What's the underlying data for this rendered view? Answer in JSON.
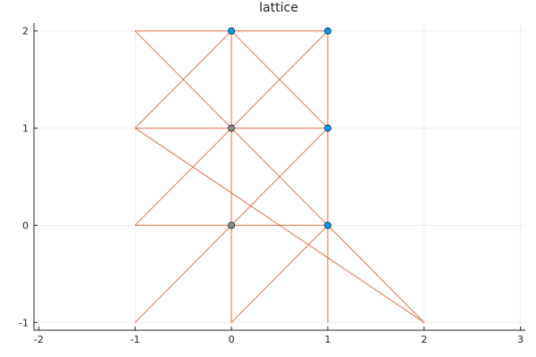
{
  "chart_data": {
    "type": "scatter",
    "title": "lattice",
    "xlabel": "",
    "ylabel": "",
    "xlim": [
      -2.05,
      3.05
    ],
    "ylim": [
      -1.08,
      2.08
    ],
    "xticks": [
      -2,
      -1,
      0,
      1,
      2,
      3
    ],
    "xtick_labels": [
      "-2",
      "-1",
      "0",
      "1",
      "2",
      "3"
    ],
    "yticks": [
      -1,
      0,
      1,
      2
    ],
    "ytick_labels": [
      "-1",
      "0",
      "1",
      "2"
    ],
    "grid": true,
    "legend": false,
    "segments": [
      [
        [
          -1,
          2
        ],
        [
          1,
          2
        ]
      ],
      [
        [
          -1,
          1
        ],
        [
          1,
          1
        ]
      ],
      [
        [
          -1,
          0
        ],
        [
          1,
          0
        ]
      ],
      [
        [
          0,
          -1
        ],
        [
          0,
          2
        ]
      ],
      [
        [
          1,
          -1
        ],
        [
          1,
          2
        ]
      ],
      [
        [
          -1,
          2
        ],
        [
          1,
          0
        ]
      ],
      [
        [
          -1,
          1
        ],
        [
          2,
          -1
        ]
      ],
      [
        [
          -1,
          0
        ],
        [
          1,
          2
        ]
      ],
      [
        [
          -1,
          -1
        ],
        [
          1,
          1
        ]
      ],
      [
        [
          0,
          -1
        ],
        [
          1,
          0
        ]
      ],
      [
        [
          -1,
          1
        ],
        [
          0,
          2
        ]
      ],
      [
        [
          0,
          2
        ],
        [
          1,
          1
        ]
      ],
      [
        [
          1,
          0
        ],
        [
          2,
          -1
        ]
      ]
    ],
    "points": [
      {
        "x": 0,
        "y": 2
      },
      {
        "x": 1,
        "y": 2
      },
      {
        "x": 0,
        "y": 1
      },
      {
        "x": 1,
        "y": 1
      },
      {
        "x": 0,
        "y": 0
      },
      {
        "x": 1,
        "y": 0
      }
    ],
    "colors": {
      "lines": "#e26f46",
      "points": "#009af9",
      "points_overlap": "#8a8a8a",
      "axis": "#222222",
      "grid": "#ececec"
    }
  }
}
